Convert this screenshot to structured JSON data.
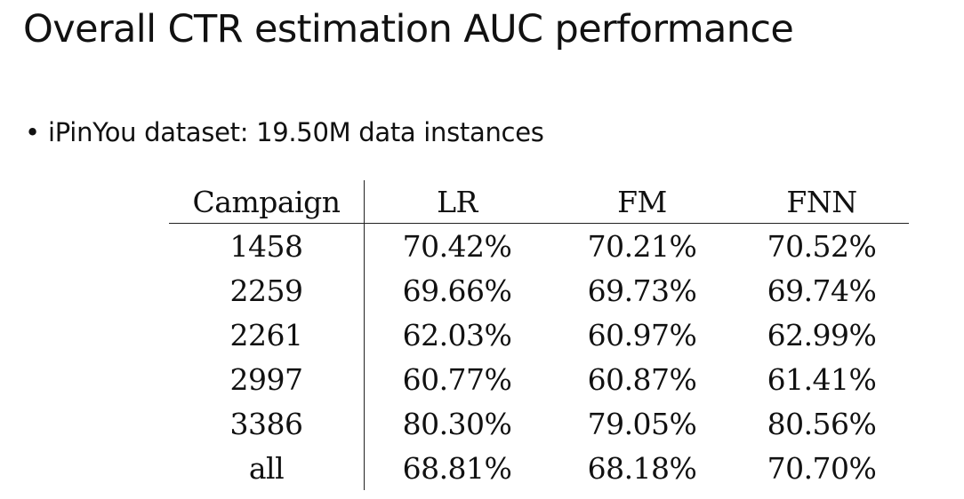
{
  "slide": {
    "title": "Overall CTR estimation AUC performance",
    "bullet_symbol": "•",
    "bullet_text": "iPinYou dataset: 19.50M data instances"
  },
  "table": {
    "headers": [
      "Campaign",
      "LR",
      "FM",
      "FNN"
    ],
    "rows": [
      [
        "1458",
        "70.42%",
        "70.21%",
        "70.52%"
      ],
      [
        "2259",
        "69.66%",
        "69.73%",
        "69.74%"
      ],
      [
        "2261",
        "62.03%",
        "60.97%",
        "62.99%"
      ],
      [
        "2997",
        "60.77%",
        "60.87%",
        "61.41%"
      ],
      [
        "3386",
        "80.30%",
        "79.05%",
        "80.56%"
      ],
      [
        "all",
        "68.81%",
        "68.18%",
        "70.70%"
      ]
    ],
    "bold_column": "FNN"
  }
}
